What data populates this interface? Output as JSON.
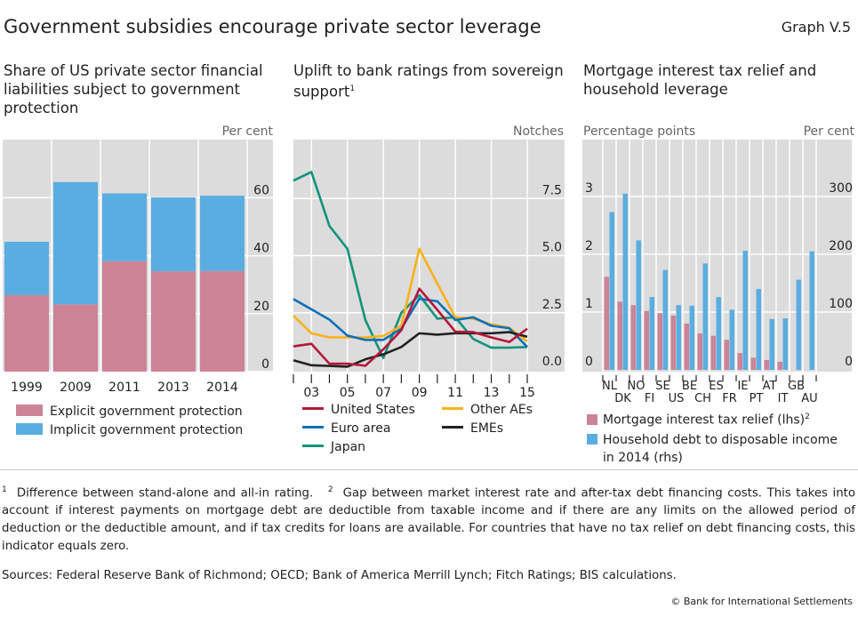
{
  "header": {
    "title": "Government subsidies encourage private sector leverage",
    "graph_number": "Graph V.5"
  },
  "colors": {
    "pink": "#cd8396",
    "blue": "#5aade0",
    "grid_bg": "#dcdcdd",
    "red": "#b5173a",
    "euro": "#0b6fb8",
    "japan": "#12937a",
    "other": "#fbb117",
    "eme": "#222222"
  },
  "chart_data": [
    {
      "type": "bar",
      "stacked": true,
      "title": "Share of US private sector financial liabilities subject to government protection",
      "unit_label": "Per cent",
      "categories": [
        "1999",
        "2009",
        "2011",
        "2013",
        "2014"
      ],
      "series": [
        {
          "name": "Explicit government protection",
          "values": [
            26.4,
            23.2,
            38.1,
            34.6,
            34.7
          ]
        },
        {
          "name": "Implicit government protection",
          "values": [
            18.4,
            42.2,
            23.4,
            25.5,
            26.0
          ]
        }
      ],
      "yticks": [
        "0",
        "20",
        "40",
        "60"
      ],
      "ylim": [
        0,
        80
      ],
      "grid": true
    },
    {
      "type": "line",
      "title": "Uplift to bank ratings from sovereign support",
      "title_sup": "1",
      "unit_label": "Notches",
      "x": [
        2002,
        2003,
        2004,
        2005,
        2006,
        2007,
        2008,
        2009,
        2010,
        2011,
        2012,
        2013,
        2014,
        2015
      ],
      "xtick_labels": [
        "03",
        "05",
        "07",
        "09",
        "11",
        "13",
        "15"
      ],
      "yticks": [
        "0.0",
        "2.5",
        "5.0",
        "7.5"
      ],
      "ylim": [
        -0.1,
        10
      ],
      "series": [
        {
          "name": "United States",
          "values": [
            1.03,
            1.14,
            0.27,
            0.27,
            0.18,
            0.9,
            1.73,
            3.55,
            2.63,
            1.67,
            1.65,
            1.42,
            1.22,
            1.8
          ]
        },
        {
          "name": "Euro area",
          "values": [
            3.1,
            2.65,
            2.2,
            1.5,
            1.31,
            1.31,
            1.8,
            3.11,
            3.0,
            2.18,
            2.3,
            1.93,
            1.82,
            1.0
          ]
        },
        {
          "name": "Japan",
          "values": [
            8.28,
            8.66,
            6.3,
            5.3,
            2.18,
            0.52,
            2.5,
            3.27,
            2.24,
            2.3,
            1.35,
            0.97,
            0.97,
            1.0
          ]
        },
        {
          "name": "Other AEs",
          "values": [
            2.37,
            1.6,
            1.42,
            1.42,
            1.42,
            1.48,
            1.93,
            5.3,
            3.78,
            2.3,
            2.24,
            1.99,
            1.84,
            1.25
          ]
        },
        {
          "name": "EMEs",
          "values": [
            0.42,
            0.2,
            0.17,
            0.14,
            0.46,
            0.68,
            1.0,
            1.6,
            1.54,
            1.6,
            1.6,
            1.6,
            1.65,
            1.45
          ]
        }
      ],
      "grid": true
    },
    {
      "type": "bar",
      "title": "Mortgage interest tax relief and household leverage",
      "left_unit_label": "Percentage points",
      "right_unit_label": "Per cent",
      "categories": [
        "NL",
        "DK",
        "NO",
        "FI",
        "SE",
        "US",
        "BE",
        "CH",
        "ES",
        "FR",
        "IE",
        "PT",
        "AT",
        "IT",
        "GB",
        "AU"
      ],
      "series": [
        {
          "name": "Mortgage interest tax relief (lhs)",
          "name_sup": "2",
          "axis": "left",
          "values": [
            1.61,
            1.18,
            1.12,
            1.02,
            0.98,
            0.94,
            0.8,
            0.63,
            0.59,
            0.52,
            0.29,
            0.21,
            0.17,
            0.14,
            0,
            0
          ]
        },
        {
          "name": "Household debt to disposable income in 2014 (rhs)",
          "name_lines": [
            "Household debt to disposable income",
            "in 2014 (rhs)"
          ],
          "axis": "right",
          "values": [
            273,
            305,
            224,
            126,
            173,
            112,
            111,
            184,
            126,
            104,
            206,
            140,
            88,
            89,
            156,
            205
          ]
        }
      ],
      "left_yticks": [
        "0",
        "1",
        "2",
        "3"
      ],
      "right_yticks": [
        "0",
        "100",
        "200",
        "300"
      ],
      "ylim_left": [
        0,
        4
      ],
      "ylim_right": [
        0,
        400
      ],
      "grid": true
    }
  ],
  "footnotes": {
    "note1_mark": "1",
    "note1": "Difference between stand-alone and all-in rating.",
    "note2_mark": "2",
    "note2": "Gap between market interest rate and after-tax debt financing costs. This takes into account if interest payments on mortgage debt are deductible from taxable income and if there are any limits on the allowed period of deduction or the deductible amount, and if tax credits for loans are available. For countries that have no tax relief on debt financing costs, this indicator equals zero.",
    "sources": "Sources: Federal Reserve Bank of Richmond; OECD; Bank of America Merrill Lynch; Fitch Ratings; BIS calculations.",
    "copyright": "© Bank for International Settlements"
  }
}
